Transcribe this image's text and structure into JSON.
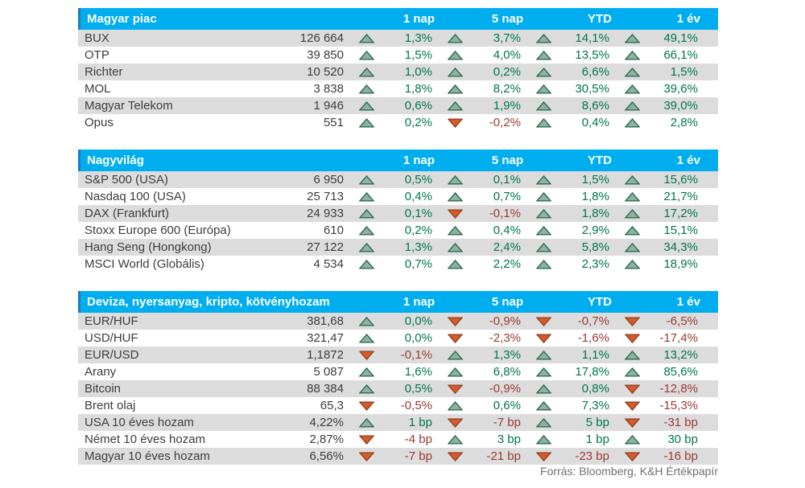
{
  "colors": {
    "header_bg": "#00aeef",
    "header_edge": "#1b7ec2",
    "row_alt_bg": "#dcdcdc",
    "up_fill": "#8db3a0",
    "up_stroke": "#2f6b4f",
    "down_fill": "#d65a2d",
    "down_stroke": "#93421f",
    "positive_text": "#00764f",
    "negative_text": "#9c3a31"
  },
  "columns": [
    "1 nap",
    "5 nap",
    "YTD",
    "1 év"
  ],
  "tables": [
    {
      "title": "Magyar piac",
      "rows": [
        {
          "name": "BUX",
          "value": "126 664",
          "changes": [
            {
              "dir": "up",
              "text": "1,3%"
            },
            {
              "dir": "up",
              "text": "3,7%"
            },
            {
              "dir": "up",
              "text": "14,1%"
            },
            {
              "dir": "up",
              "text": "49,1%"
            }
          ]
        },
        {
          "name": "OTP",
          "value": "39 850",
          "changes": [
            {
              "dir": "up",
              "text": "1,5%"
            },
            {
              "dir": "up",
              "text": "4,0%"
            },
            {
              "dir": "up",
              "text": "13,5%"
            },
            {
              "dir": "up",
              "text": "66,1%"
            }
          ]
        },
        {
          "name": "Richter",
          "value": "10 520",
          "changes": [
            {
              "dir": "up",
              "text": "1,0%"
            },
            {
              "dir": "up",
              "text": "0,2%"
            },
            {
              "dir": "up",
              "text": "6,6%"
            },
            {
              "dir": "up",
              "text": "1,5%"
            }
          ]
        },
        {
          "name": "MOL",
          "value": "3 838",
          "changes": [
            {
              "dir": "up",
              "text": "1,8%"
            },
            {
              "dir": "up",
              "text": "8,2%"
            },
            {
              "dir": "up",
              "text": "30,5%"
            },
            {
              "dir": "up",
              "text": "39,6%"
            }
          ]
        },
        {
          "name": "Magyar Telekom",
          "value": "1 946",
          "changes": [
            {
              "dir": "up",
              "text": "0,6%"
            },
            {
              "dir": "up",
              "text": "1,9%"
            },
            {
              "dir": "up",
              "text": "8,6%"
            },
            {
              "dir": "up",
              "text": "39,0%"
            }
          ]
        },
        {
          "name": "Opus",
          "value": "551",
          "changes": [
            {
              "dir": "up",
              "text": "0,2%"
            },
            {
              "dir": "down",
              "text": "-0,2%"
            },
            {
              "dir": "up",
              "text": "0,4%"
            },
            {
              "dir": "up",
              "text": "2,8%"
            }
          ]
        }
      ]
    },
    {
      "title": "Nagyvilág",
      "rows": [
        {
          "name": "S&P 500 (USA)",
          "value": "6 950",
          "changes": [
            {
              "dir": "up",
              "text": "0,5%"
            },
            {
              "dir": "up",
              "text": "0,1%"
            },
            {
              "dir": "up",
              "text": "1,5%"
            },
            {
              "dir": "up",
              "text": "15,6%"
            }
          ]
        },
        {
          "name": "Nasdaq 100 (USA)",
          "value": "25 713",
          "changes": [
            {
              "dir": "up",
              "text": "0,4%"
            },
            {
              "dir": "up",
              "text": "0,7%"
            },
            {
              "dir": "up",
              "text": "1,8%"
            },
            {
              "dir": "up",
              "text": "21,7%"
            }
          ]
        },
        {
          "name": "DAX (Frankfurt)",
          "value": "24 933",
          "changes": [
            {
              "dir": "up",
              "text": "0,1%"
            },
            {
              "dir": "down",
              "text": "-0,1%"
            },
            {
              "dir": "up",
              "text": "1,8%"
            },
            {
              "dir": "up",
              "text": "17,2%"
            }
          ]
        },
        {
          "name": "Stoxx Europe 600 (Európa)",
          "value": "610",
          "changes": [
            {
              "dir": "up",
              "text": "0,2%"
            },
            {
              "dir": "up",
              "text": "0,4%"
            },
            {
              "dir": "up",
              "text": "2,9%"
            },
            {
              "dir": "up",
              "text": "15,1%"
            }
          ]
        },
        {
          "name": "Hang Seng (Hongkong)",
          "value": "27 122",
          "changes": [
            {
              "dir": "up",
              "text": "1,3%"
            },
            {
              "dir": "up",
              "text": "2,4%"
            },
            {
              "dir": "up",
              "text": "5,8%"
            },
            {
              "dir": "up",
              "text": "34,3%"
            }
          ]
        },
        {
          "name": "MSCI World (Globális)",
          "value": "4 534",
          "changes": [
            {
              "dir": "up",
              "text": "0,7%"
            },
            {
              "dir": "up",
              "text": "2,2%"
            },
            {
              "dir": "up",
              "text": "2,3%"
            },
            {
              "dir": "up",
              "text": "18,9%"
            }
          ]
        }
      ]
    },
    {
      "title": "Deviza, nyersanyag, kripto, kötvényhozam",
      "rows": [
        {
          "name": "EUR/HUF",
          "value": "381,68",
          "changes": [
            {
              "dir": "up",
              "text": "0,0%"
            },
            {
              "dir": "down",
              "text": "-0,9%"
            },
            {
              "dir": "down",
              "text": "-0,7%"
            },
            {
              "dir": "down",
              "text": "-6,5%"
            }
          ]
        },
        {
          "name": "USD/HUF",
          "value": "321,47",
          "changes": [
            {
              "dir": "up",
              "text": "0,0%"
            },
            {
              "dir": "down",
              "text": "-2,3%"
            },
            {
              "dir": "down",
              "text": "-1,6%"
            },
            {
              "dir": "down",
              "text": "-17,4%"
            }
          ]
        },
        {
          "name": "EUR/USD",
          "value": "1,1872",
          "changes": [
            {
              "dir": "down",
              "text": "-0,1%"
            },
            {
              "dir": "up",
              "text": "1,3%"
            },
            {
              "dir": "up",
              "text": "1,1%"
            },
            {
              "dir": "up",
              "text": "13,2%"
            }
          ]
        },
        {
          "name": "Arany",
          "value": "5 087",
          "changes": [
            {
              "dir": "up",
              "text": "1,6%"
            },
            {
              "dir": "up",
              "text": "6,8%"
            },
            {
              "dir": "up",
              "text": "17,8%"
            },
            {
              "dir": "up",
              "text": "85,6%"
            }
          ]
        },
        {
          "name": "Bitcoin",
          "value": "88 384",
          "changes": [
            {
              "dir": "up",
              "text": "0,5%"
            },
            {
              "dir": "down",
              "text": "-0,9%"
            },
            {
              "dir": "up",
              "text": "0,8%"
            },
            {
              "dir": "down",
              "text": "-12,8%"
            }
          ]
        },
        {
          "name": "Brent olaj",
          "value": "65,3",
          "changes": [
            {
              "dir": "down",
              "text": "-0,5%"
            },
            {
              "dir": "up",
              "text": "0,6%"
            },
            {
              "dir": "up",
              "text": "7,3%"
            },
            {
              "dir": "down",
              "text": "-15,3%"
            }
          ]
        },
        {
          "name": "USA 10 éves hozam",
          "value": "4,22%",
          "changes": [
            {
              "dir": "up",
              "text": "1 bp"
            },
            {
              "dir": "down",
              "text": "-7 bp"
            },
            {
              "dir": "up",
              "text": "5 bp"
            },
            {
              "dir": "down",
              "text": "-31 bp"
            }
          ]
        },
        {
          "name": "Német 10 éves hozam",
          "value": "2,87%",
          "changes": [
            {
              "dir": "down",
              "text": "-4 bp"
            },
            {
              "dir": "up",
              "text": "3 bp"
            },
            {
              "dir": "up",
              "text": "1 bp"
            },
            {
              "dir": "up",
              "text": "30 bp"
            }
          ]
        },
        {
          "name": "Magyar 10 éves hozam",
          "value": "6,56%",
          "changes": [
            {
              "dir": "down",
              "text": "-7 bp"
            },
            {
              "dir": "down",
              "text": "-21 bp"
            },
            {
              "dir": "down",
              "text": "-23 bp"
            },
            {
              "dir": "down",
              "text": "-16 bp"
            }
          ]
        }
      ]
    }
  ],
  "footer": {
    "source": "Forrás: Bloomberg, K&H Értékpapír"
  }
}
